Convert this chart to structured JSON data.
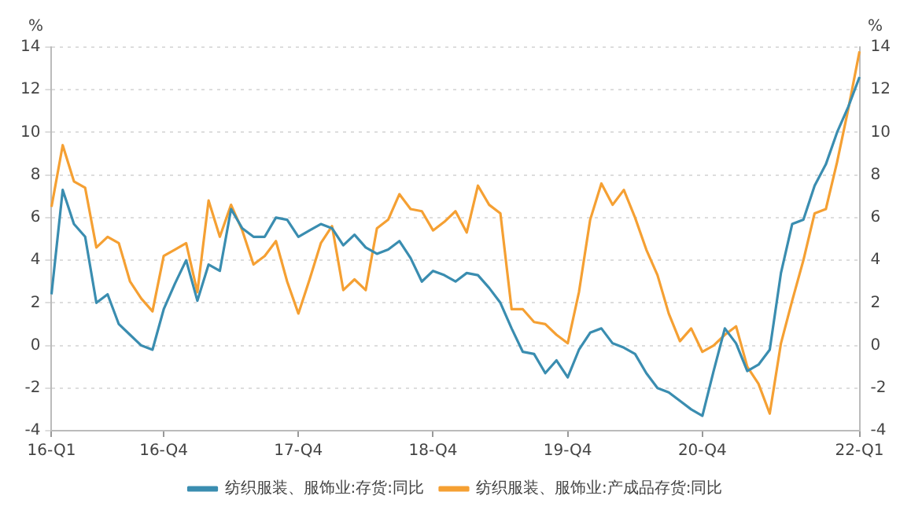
{
  "chart_data": {
    "type": "line",
    "categories": [
      "16-Q1",
      null,
      null,
      null,
      null,
      null,
      null,
      null,
      null,
      null,
      "16-Q4",
      null,
      null,
      null,
      null,
      null,
      null,
      null,
      null,
      null,
      null,
      null,
      "17-Q4",
      null,
      null,
      null,
      null,
      null,
      null,
      null,
      null,
      null,
      null,
      null,
      "18-Q4",
      null,
      null,
      null,
      null,
      null,
      null,
      null,
      null,
      null,
      null,
      null,
      "19-Q4",
      null,
      null,
      null,
      null,
      null,
      null,
      null,
      null,
      null,
      null,
      null,
      "20-Q4",
      null,
      null,
      null,
      null,
      null,
      null,
      null,
      null,
      null,
      null,
      null,
      null,
      null,
      "22-Q1"
    ],
    "series": [
      {
        "name": "纺织服装、服饰业:存货:同比",
        "color": "#3a8db0",
        "values": [
          2.4,
          7.3,
          5.7,
          5.1,
          2.0,
          2.4,
          1.0,
          0.5,
          0.0,
          -0.2,
          1.7,
          2.9,
          4.0,
          2.1,
          3.8,
          3.5,
          6.4,
          5.5,
          5.1,
          5.1,
          6.0,
          5.9,
          5.1,
          5.4,
          5.7,
          5.5,
          4.7,
          5.2,
          4.6,
          4.3,
          4.5,
          4.9,
          4.1,
          3.0,
          3.5,
          3.3,
          3.0,
          3.4,
          3.3,
          2.7,
          2.0,
          0.8,
          -0.3,
          -0.4,
          -1.3,
          -0.7,
          -1.5,
          -0.2,
          0.6,
          0.8,
          0.1,
          -0.1,
          -0.4,
          -1.3,
          -2.0,
          -2.2,
          -2.6,
          -3.0,
          -3.3,
          -1.2,
          0.8,
          0.1,
          -1.2,
          -0.9,
          -0.2,
          3.4,
          5.7,
          5.9,
          7.5,
          8.5,
          10.0,
          11.2,
          12.6
        ]
      },
      {
        "name": "纺织服装、服饰业:产成品存货:同比",
        "color": "#f5a033",
        "values": [
          6.5,
          9.4,
          7.7,
          7.4,
          4.6,
          5.1,
          4.8,
          3.0,
          2.2,
          1.6,
          4.2,
          4.5,
          4.8,
          2.5,
          6.8,
          5.1,
          6.6,
          5.4,
          3.8,
          4.2,
          4.9,
          3.0,
          1.5,
          3.1,
          4.8,
          5.6,
          2.6,
          3.1,
          2.6,
          5.5,
          5.9,
          7.1,
          6.4,
          6.3,
          5.4,
          5.8,
          6.3,
          5.3,
          7.5,
          6.6,
          6.2,
          1.7,
          1.7,
          1.1,
          1.0,
          0.5,
          0.1,
          2.5,
          5.9,
          7.6,
          6.6,
          7.3,
          6.0,
          4.5,
          3.3,
          1.5,
          0.2,
          0.8,
          -0.3,
          0.0,
          0.5,
          0.9,
          -1.0,
          -1.8,
          -3.2,
          0.1,
          2.1,
          4.0,
          6.2,
          6.4,
          8.6,
          11.1,
          13.8
        ]
      }
    ],
    "ylabel": "%",
    "y2label": "%",
    "ylim": [
      -4,
      14
    ],
    "yticks": [
      -4,
      -2,
      0,
      2,
      4,
      6,
      8,
      10,
      12,
      14
    ],
    "y2lim": [
      -4,
      14
    ],
    "y2ticks": [
      -4,
      -2,
      0,
      2,
      4,
      6,
      8,
      10,
      12,
      14
    ],
    "grid": "y",
    "legend": "bottom",
    "marker": "none",
    "line_style": "solid"
  }
}
